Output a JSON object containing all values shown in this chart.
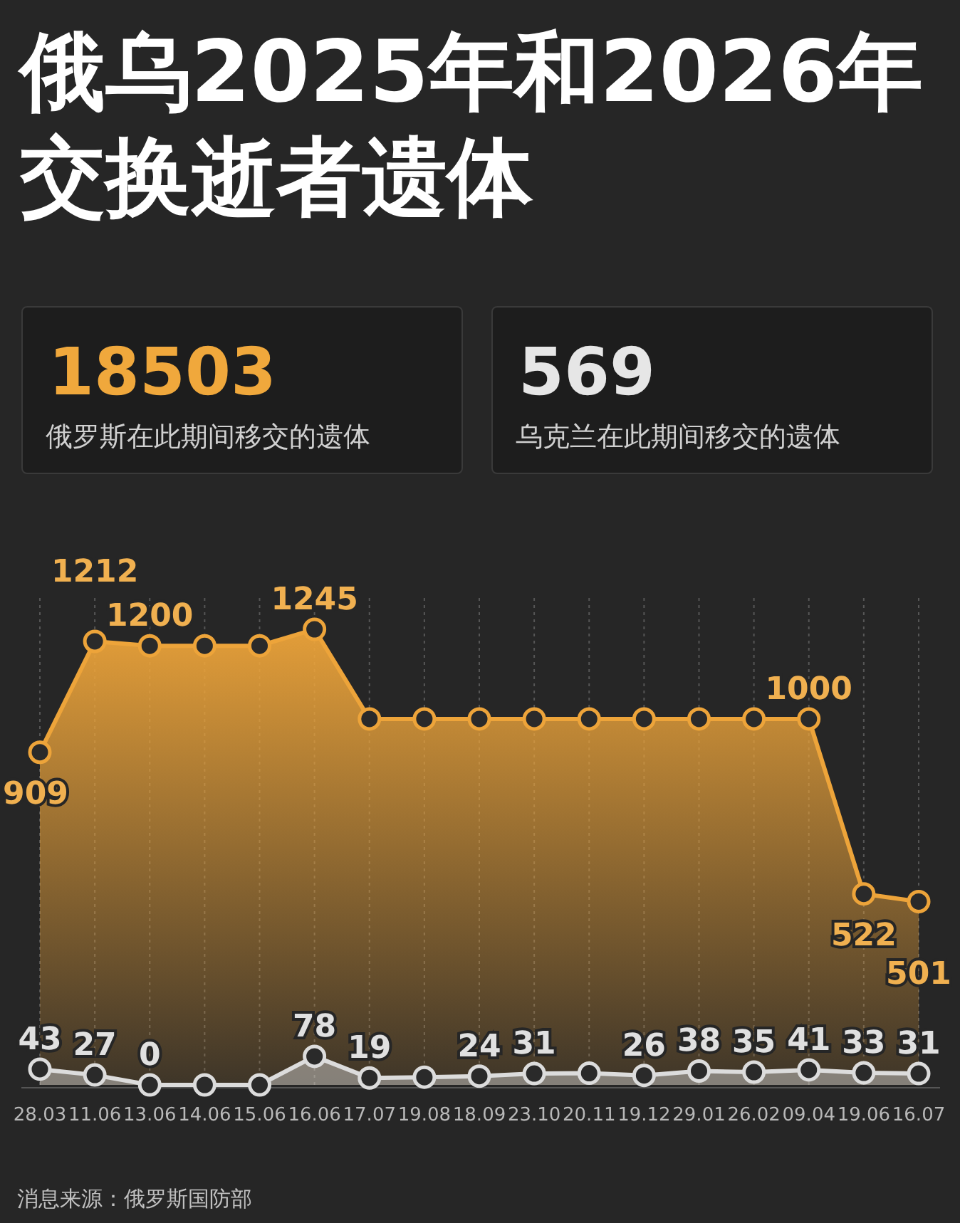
{
  "chart_data": [
    {
      "type": "other",
      "annotations": [
        "18503",
        "俄罗斯在此期间移交的遗体"
      ]
    },
    {
      "type": "other",
      "annotations": [
        "569",
        "乌克兰在此期间移交的遗体"
      ]
    },
    {
      "type": "area",
      "title": "俄乌2025年和2026年交换逝者遗体",
      "categories": [
        "28.03",
        "11.06",
        "13.06",
        "14.06",
        "15.06",
        "16.06",
        "17.07",
        "19.08",
        "18.09",
        "23.10",
        "20.11",
        "19.12",
        "29.01",
        "26.02",
        "09.04",
        "19.06",
        "16.07"
      ],
      "series": [
        {
          "color": "#eda43a",
          "values": [
            909,
            1212,
            1200,
            1200,
            1200,
            1245,
            1000,
            1000,
            1000,
            1000,
            1000,
            1000,
            1000,
            1000,
            1000,
            522,
            501
          ],
          "value_labels": [
            "909",
            "1212",
            "1200",
            null,
            null,
            "1245",
            null,
            null,
            null,
            null,
            null,
            null,
            null,
            null,
            "1000",
            "522",
            "501"
          ]
        },
        {
          "color": "#dcdcdc",
          "values": [
            43,
            27,
            0,
            0,
            0,
            78,
            19,
            21,
            24,
            31,
            32,
            26,
            38,
            35,
            41,
            33,
            31
          ],
          "value_labels": [
            "43",
            "27",
            "0",
            null,
            null,
            "78",
            "19",
            null,
            "24",
            "31",
            null,
            "26",
            "38",
            "35",
            "41",
            "33",
            "31"
          ]
        }
      ],
      "grid": "x",
      "marker": "circle",
      "annotations": [
        "消息来源：俄罗斯国防部"
      ]
    }
  ]
}
